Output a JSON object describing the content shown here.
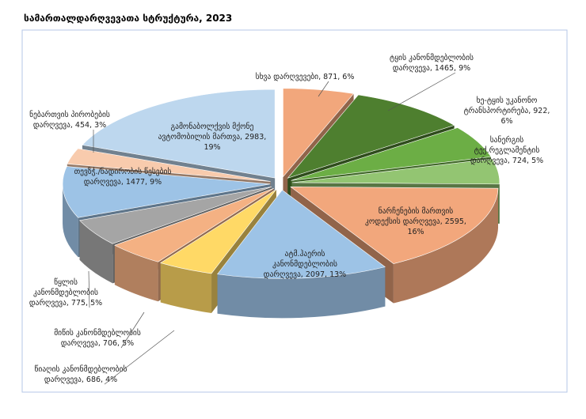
{
  "chart_data": {
    "type": "pie3d",
    "title": "სამართალდარღვევათა სტრუქტურა, 2023",
    "values": [
      871,
      1465,
      922,
      724,
      2595,
      2097,
      686,
      706,
      775,
      1477,
      454,
      2983
    ],
    "value_labels": [
      "სხვა დარღვევები, 871, 6%",
      "ტყის კანონმდებლობის დარღვევა, 1465, 9%",
      "ხე-ტყის უკანონო ტრანსპორტირება, 922, 6%",
      "სანერგის ტექ.რეგლამენტის დარღვევა, 724, 5%",
      "ნარჩენების მართვის კოდექსის დარღვევა, 2595, 16%",
      "ატმ.ჰაერის კანონმდებლობის დარღვევა, 2097, 13%",
      "წიაღის კანონმდებლობის დარღვევა, 686, 4%",
      "მიწის კანონმდებლობის დარღვევა, 706, 5%",
      "წყლის კანონმდებლობის დარღვევა, 775, 5%",
      "თევზჭ./ნადირობის წესების დარღვევა, 1477, 9%",
      "ნებართვის პირობების დარღვევა, 454, 3%",
      "გამონაბოლქვის მქონე ავტომობილის მართვა, 2983, 19%"
    ],
    "colors": [
      "#f2a77c",
      "#4e7f2f",
      "#6cae45",
      "#93c572",
      "#f2a77c",
      "#9dc3e6",
      "#ffd966",
      "#f4b183",
      "#a5a5a5",
      "#9dc3e6",
      "#f8cbad",
      "#bdd7ee"
    ]
  }
}
